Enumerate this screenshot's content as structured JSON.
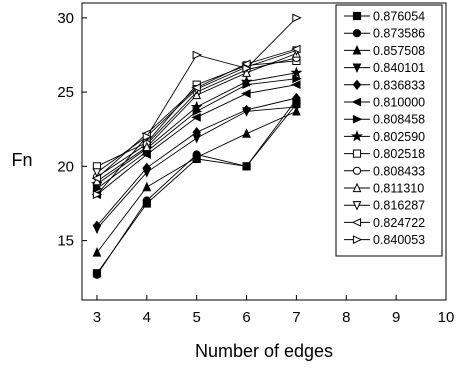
{
  "chart_data": {
    "type": "line",
    "title": "",
    "xlabel": "Number of edges",
    "ylabel": "Fn",
    "xlim": [
      2.7,
      10
    ],
    "ylim": [
      11,
      31
    ],
    "xticks": [
      3,
      4,
      5,
      6,
      7,
      8,
      9,
      10
    ],
    "yticks": [
      15,
      20,
      25,
      30
    ],
    "grid": false,
    "legend_position": "right",
    "x": [
      3,
      4,
      5,
      6,
      7
    ],
    "series": [
      {
        "name": "0.876054",
        "marker": "square-filled",
        "values": [
          12.8,
          17.5,
          20.5,
          20.0,
          24.2
        ]
      },
      {
        "name": "0.873586",
        "marker": "circle-filled",
        "values": [
          12.7,
          17.7,
          20.8,
          20.0,
          24.5
        ]
      },
      {
        "name": "0.857508",
        "marker": "triangle-up-filled",
        "values": [
          14.2,
          18.6,
          20.6,
          22.2,
          23.7
        ]
      },
      {
        "name": "0.840101",
        "marker": "triangle-down-filled",
        "values": [
          15.8,
          19.6,
          21.9,
          23.7,
          24.0
        ]
      },
      {
        "name": "0.836833",
        "marker": "diamond-filled",
        "values": [
          16.0,
          19.9,
          22.3,
          23.8,
          24.6
        ]
      },
      {
        "name": "0.810000",
        "marker": "triangle-left-filled",
        "values": [
          18.1,
          20.8,
          23.3,
          24.9,
          25.5
        ]
      },
      {
        "name": "0.808458",
        "marker": "triangle-right-filled",
        "values": [
          18.5,
          21.0,
          23.7,
          25.5,
          25.9
        ]
      },
      {
        "name": "0.802590",
        "marker": "star-filled",
        "values": [
          18.8,
          21.2,
          24.0,
          25.7,
          26.3
        ]
      },
      {
        "name": "0.802518",
        "marker": "square-open",
        "values": [
          20.0,
          21.6,
          25.5,
          26.8,
          27.1
        ]
      },
      {
        "name": "0.808433",
        "marker": "circle-open",
        "values": [
          19.3,
          21.5,
          25.0,
          26.5,
          27.3
        ]
      },
      {
        "name": "0.811310",
        "marker": "triangle-up-open",
        "values": [
          19.0,
          21.3,
          24.8,
          26.3,
          27.6
        ]
      },
      {
        "name": "0.816287",
        "marker": "triangle-down-open",
        "values": [
          19.6,
          22.0,
          25.2,
          26.7,
          27.8
        ]
      },
      {
        "name": "0.824722",
        "marker": "triangle-left-open",
        "values": [
          19.2,
          22.2,
          25.3,
          26.9,
          27.9
        ]
      },
      {
        "name": "0.840053",
        "marker": "triangle-right-open",
        "values": [
          18.1,
          22.0,
          27.5,
          26.6,
          30.0
        ]
      }
    ]
  }
}
